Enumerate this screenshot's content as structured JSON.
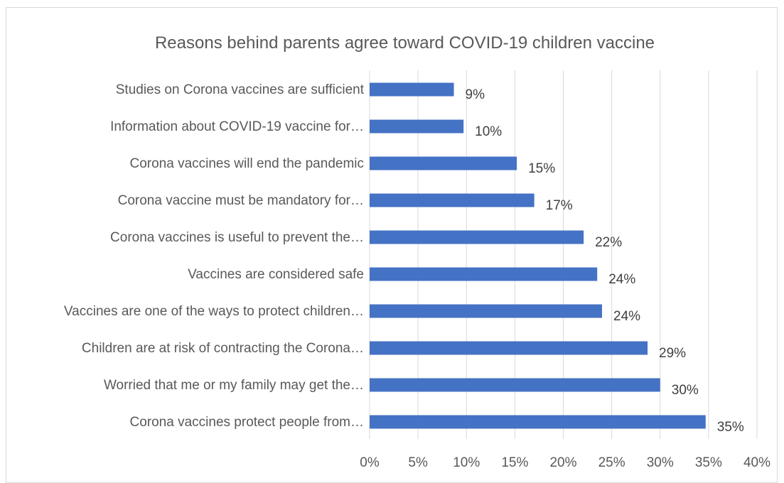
{
  "chart_data": {
    "type": "bar",
    "orientation": "horizontal",
    "title": "Reasons behind parents agree toward COVID-19 children vaccine",
    "categories": [
      "Studies on Corona vaccines are sufficient",
      "Information about COVID-19 vaccine for…",
      "Corona vaccines will end the pandemic",
      "Corona vaccine must be mandatory for…",
      "Corona vaccines is useful to prevent the…",
      "Vaccines are considered safe",
      "Vaccines are one of the ways to protect children…",
      "Children are at risk of contracting the Corona…",
      "Worried that me or my family may get the…",
      "Corona vaccines protect people from…"
    ],
    "values": [
      8.7,
      9.7,
      15.2,
      17.0,
      22.1,
      23.5,
      24.0,
      28.7,
      30.0,
      34.7
    ],
    "data_labels": [
      "9%",
      "10%",
      "15%",
      "17%",
      "22%",
      "24%",
      "24%",
      "29%",
      "30%",
      "35%"
    ],
    "xlim": [
      0,
      40
    ],
    "x_ticks": [
      "0%",
      "5%",
      "10%",
      "15%",
      "20%",
      "25%",
      "30%",
      "35%",
      "40%"
    ],
    "grid": true,
    "legend": "none",
    "colors": {
      "bar": "#4472c4",
      "gridline": "#d9d9d9",
      "text": "#595959",
      "data_label_text": "#404040"
    }
  }
}
